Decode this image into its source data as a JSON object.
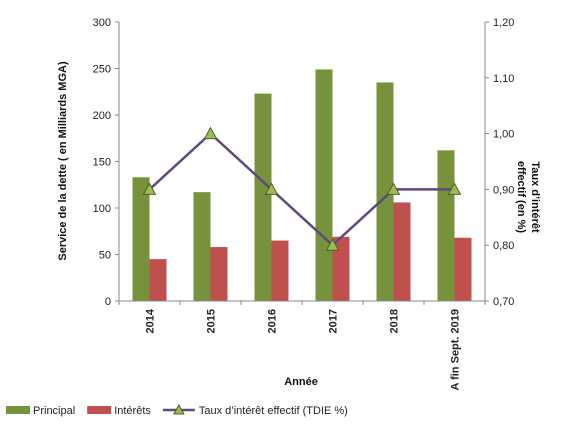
{
  "chart_data": {
    "type": "bar",
    "categories": [
      "2014",
      "2015",
      "2016",
      "2017",
      "2018",
      "A fin Sept. 2019"
    ],
    "series": [
      {
        "name": "Principal",
        "values": [
          133,
          117,
          223,
          249,
          235,
          162
        ],
        "color": "#76923C",
        "axis": "left"
      },
      {
        "name": "Intérêts",
        "values": [
          45,
          58,
          65,
          69,
          106,
          68
        ],
        "color": "#C0504D",
        "axis": "left"
      },
      {
        "name": "Taux d’intérêt effectif (TDIE %)",
        "type": "line",
        "values": [
          0.9,
          1.0,
          0.9,
          0.8,
          0.9,
          0.9
        ],
        "color": "#5F497A",
        "marker_color": "#9BBB59",
        "axis": "right"
      }
    ],
    "xlabel": "Année",
    "ylabel": "Service de la dette ( en Milliards MGA)",
    "ylabel_right": "Taux d’intérêt effectif (en %)",
    "ylim": [
      0,
      300
    ],
    "y_ticks": [
      "0",
      "50",
      "100",
      "150",
      "200",
      "250",
      "300"
    ],
    "ylim_right": [
      0.7,
      1.2
    ],
    "y_ticks_right": [
      "0,70",
      "0,80",
      "0,90",
      "1,00",
      "1,10",
      "1,20"
    ],
    "grid": false,
    "legend_position": "bottom"
  }
}
